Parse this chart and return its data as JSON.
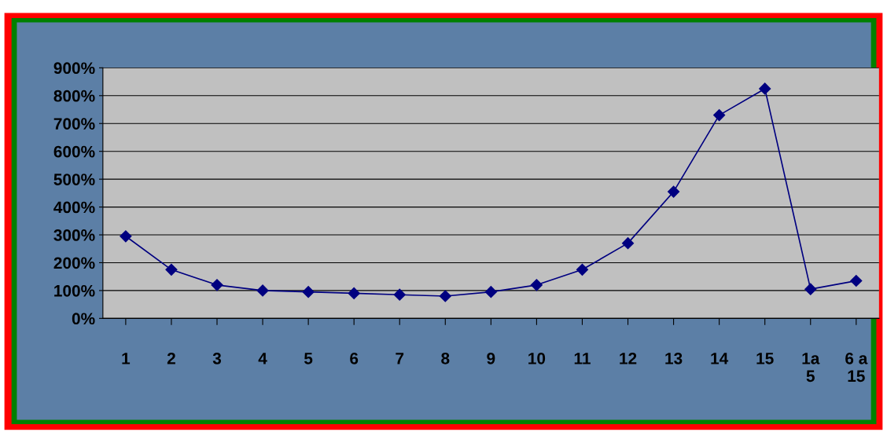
{
  "chart_data": {
    "type": "line",
    "categories": [
      "1",
      "2",
      "3",
      "4",
      "5",
      "6",
      "7",
      "8",
      "9",
      "10",
      "11",
      "12",
      "13",
      "14",
      "15",
      "1a\n5",
      "6 a\n15"
    ],
    "series": [
      {
        "color": "#000080",
        "values": [
          295,
          175,
          120,
          100,
          95,
          90,
          85,
          80,
          95,
          120,
          175,
          270,
          455,
          730,
          825,
          105,
          135
        ]
      }
    ],
    "ylim": [
      0,
      900
    ],
    "yticks": [
      {
        "value": 0,
        "label": "0%"
      },
      {
        "value": 100,
        "label": "100%"
      },
      {
        "value": 200,
        "label": "200%"
      },
      {
        "value": 300,
        "label": "300%"
      },
      {
        "value": 400,
        "label": "400%"
      },
      {
        "value": 500,
        "label": "500%"
      },
      {
        "value": 600,
        "label": "600%"
      },
      {
        "value": 700,
        "label": "700%"
      },
      {
        "value": 800,
        "label": "800%"
      },
      {
        "value": 900,
        "label": "900%"
      }
    ],
    "grid": "y",
    "marker": "diamond",
    "line_style": "solid",
    "legend": false
  }
}
